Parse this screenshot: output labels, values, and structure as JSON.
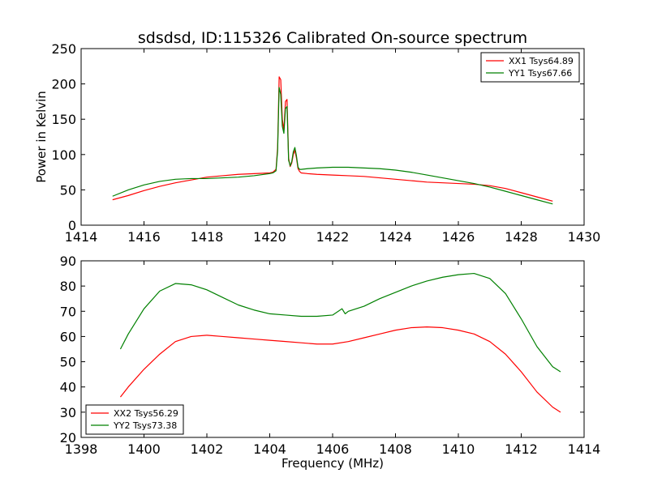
{
  "chart_data": [
    {
      "type": "line",
      "title": "sdsdsd, ID:115326 Calibrated On-source spectrum",
      "xlabel": "",
      "ylabel": "Power in Kelvin",
      "xlim": [
        1414,
        1430
      ],
      "ylim": [
        0,
        250
      ],
      "xticks": [
        "1414",
        "1416",
        "1418",
        "1420",
        "1422",
        "1424",
        "1426",
        "1428",
        "1430"
      ],
      "yticks": [
        "0",
        "50",
        "100",
        "150",
        "200",
        "250"
      ],
      "legend_position": "top-right",
      "series": [
        {
          "name": "XX1 Tsys64.89",
          "color": "#ff0000",
          "x": [
            1415.0,
            1415.5,
            1416.0,
            1416.5,
            1417.0,
            1417.5,
            1418.0,
            1418.5,
            1419.0,
            1419.5,
            1420.0,
            1420.1,
            1420.2,
            1420.25,
            1420.3,
            1420.35,
            1420.4,
            1420.45,
            1420.5,
            1420.55,
            1420.6,
            1420.65,
            1420.7,
            1420.75,
            1420.8,
            1420.85,
            1420.9,
            1420.95,
            1421.0,
            1421.2,
            1421.5,
            1422.0,
            1422.5,
            1423.0,
            1423.5,
            1424.0,
            1424.5,
            1425.0,
            1425.5,
            1426.0,
            1426.5,
            1427.0,
            1427.5,
            1428.0,
            1428.5,
            1429.0
          ],
          "y": [
            36,
            42,
            49,
            55,
            60,
            64,
            68,
            70,
            72,
            73,
            74,
            75,
            79,
            110,
            210,
            206,
            150,
            135,
            175,
            178,
            95,
            83,
            88,
            100,
            106,
            95,
            80,
            76,
            74,
            73,
            72,
            71,
            70,
            69,
            67,
            65,
            63,
            61,
            60,
            59,
            58,
            56,
            52,
            46,
            40,
            34
          ]
        },
        {
          "name": "YY1 Tsys67.66",
          "color": "#008000",
          "x": [
            1415.0,
            1415.5,
            1416.0,
            1416.5,
            1417.0,
            1417.5,
            1418.0,
            1418.5,
            1419.0,
            1419.5,
            1420.0,
            1420.1,
            1420.2,
            1420.25,
            1420.3,
            1420.35,
            1420.4,
            1420.45,
            1420.5,
            1420.55,
            1420.6,
            1420.65,
            1420.7,
            1420.75,
            1420.8,
            1420.85,
            1420.9,
            1420.95,
            1421.0,
            1421.2,
            1421.5,
            1422.0,
            1422.5,
            1423.0,
            1423.5,
            1424.0,
            1424.5,
            1425.0,
            1425.5,
            1426.0,
            1426.5,
            1427.0,
            1427.5,
            1428.0,
            1428.5,
            1429.0
          ],
          "y": [
            41,
            50,
            57,
            62,
            65,
            66,
            66,
            67,
            68,
            70,
            73,
            74,
            77,
            105,
            195,
            185,
            140,
            130,
            165,
            168,
            92,
            84,
            90,
            104,
            110,
            98,
            82,
            79,
            79,
            80,
            81,
            82,
            82,
            81,
            80,
            78,
            75,
            71,
            67,
            63,
            59,
            54,
            48,
            42,
            36,
            30
          ]
        }
      ]
    },
    {
      "type": "line",
      "title": "",
      "xlabel": "Frequency (MHz)",
      "ylabel": "",
      "xlim": [
        1398,
        1414
      ],
      "ylim": [
        20,
        90
      ],
      "xticks": [
        "1398",
        "1400",
        "1402",
        "1404",
        "1406",
        "1408",
        "1410",
        "1412",
        "1414"
      ],
      "yticks": [
        "20",
        "30",
        "40",
        "50",
        "60",
        "70",
        "80",
        "90"
      ],
      "legend_position": "bottom-left",
      "series": [
        {
          "name": "XX2 Tsys56.29",
          "color": "#ff0000",
          "x": [
            1399.25,
            1399.5,
            1400.0,
            1400.5,
            1401.0,
            1401.5,
            1402.0,
            1402.5,
            1403.0,
            1403.5,
            1404.0,
            1404.5,
            1405.0,
            1405.5,
            1406.0,
            1406.5,
            1407.0,
            1407.5,
            1408.0,
            1408.5,
            1409.0,
            1409.5,
            1410.0,
            1410.5,
            1411.0,
            1411.5,
            1412.0,
            1412.5,
            1413.0,
            1413.25
          ],
          "y": [
            36,
            40,
            47,
            53,
            58,
            60,
            60.5,
            60,
            59.5,
            59,
            58.5,
            58,
            57.5,
            57,
            57,
            58,
            59.5,
            61,
            62.5,
            63.5,
            63.8,
            63.5,
            62.5,
            61,
            58,
            53,
            46,
            38,
            32,
            30
          ]
        },
        {
          "name": "YY2 Tsys73.38",
          "color": "#008000",
          "x": [
            1399.25,
            1399.5,
            1400.0,
            1400.5,
            1401.0,
            1401.5,
            1402.0,
            1402.5,
            1403.0,
            1403.5,
            1404.0,
            1404.5,
            1405.0,
            1405.5,
            1406.0,
            1406.3,
            1406.4,
            1406.5,
            1407.0,
            1407.5,
            1408.0,
            1408.5,
            1409.0,
            1409.5,
            1410.0,
            1410.5,
            1411.0,
            1411.5,
            1412.0,
            1412.5,
            1413.0,
            1413.25
          ],
          "y": [
            55,
            61,
            71,
            78,
            81,
            80.5,
            78.5,
            75.5,
            72.5,
            70.5,
            69,
            68.5,
            68,
            68,
            68.5,
            71,
            69,
            70,
            72,
            75,
            77.5,
            80,
            82,
            83.5,
            84.5,
            85,
            83,
            77,
            67,
            56,
            48,
            46
          ]
        }
      ]
    }
  ]
}
